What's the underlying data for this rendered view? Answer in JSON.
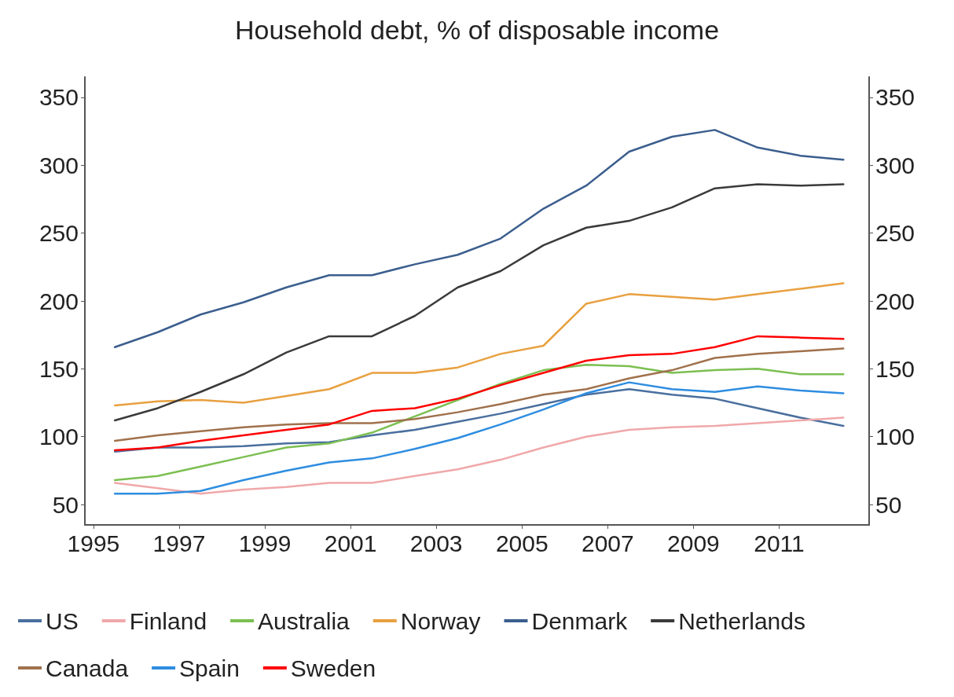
{
  "chart_data": {
    "type": "line",
    "title": "Household debt, % of disposable income",
    "x": [
      1995.5,
      1996.5,
      1997.5,
      1998.5,
      1999.5,
      2000.5,
      2001.5,
      2002.5,
      2003.5,
      2004.5,
      2005.5,
      2006.5,
      2007.5,
      2008.5,
      2009.5,
      2010.5,
      2011.5,
      2012.5
    ],
    "series": [
      {
        "name": "US",
        "color": "#4a6f9e",
        "values": [
          89,
          92,
          92,
          93,
          95,
          96,
          101,
          105,
          111,
          117,
          124,
          131,
          135,
          131,
          128,
          121,
          114,
          108
        ]
      },
      {
        "name": "Finland",
        "color": "#f0a8aa",
        "values": [
          66,
          62,
          58,
          61,
          63,
          66,
          66,
          71,
          76,
          83,
          92,
          100,
          105,
          107,
          108,
          110,
          112,
          114
        ]
      },
      {
        "name": "Australia",
        "color": "#7cbf52",
        "values": [
          68,
          71,
          78,
          85,
          92,
          95,
          103,
          115,
          127,
          139,
          149,
          153,
          152,
          147,
          149,
          150,
          146,
          146
        ]
      },
      {
        "name": "Norway",
        "color": "#e8a040",
        "values": [
          123,
          126,
          127,
          125,
          130,
          135,
          147,
          147,
          151,
          161,
          167,
          198,
          205,
          203,
          201,
          205,
          209,
          213
        ]
      },
      {
        "name": "Denmark",
        "color": "#3b5e8e",
        "values": [
          166,
          177,
          190,
          199,
          210,
          219,
          219,
          227,
          234,
          246,
          268,
          285,
          310,
          321,
          326,
          313,
          307,
          304
        ]
      },
      {
        "name": "Netherlands",
        "color": "#3a3a3a",
        "values": [
          112,
          121,
          133,
          146,
          162,
          174,
          174,
          189,
          210,
          222,
          241,
          254,
          259,
          269,
          283,
          286,
          285,
          286
        ]
      },
      {
        "name": "Canada",
        "color": "#a0714c",
        "values": [
          97,
          101,
          104,
          107,
          109,
          110,
          110,
          113,
          118,
          124,
          131,
          135,
          143,
          149,
          158,
          161,
          163,
          165
        ]
      },
      {
        "name": "Spain",
        "color": "#2e8de0",
        "values": [
          58,
          58,
          60,
          68,
          75,
          81,
          84,
          91,
          99,
          109,
          120,
          132,
          140,
          135,
          133,
          137,
          134,
          132
        ]
      },
      {
        "name": "Sweden",
        "color": "#ff0000",
        "values": [
          90,
          92,
          97,
          101,
          105,
          109,
          119,
          121,
          128,
          138,
          147,
          156,
          160,
          161,
          166,
          174,
          173,
          172
        ]
      }
    ],
    "xlim": [
      1994.8,
      2013.1
    ],
    "xticks": [
      1995,
      1997,
      1999,
      2001,
      2003,
      2005,
      2007,
      2009,
      2011
    ],
    "ylim": [
      35,
      365
    ],
    "yticks": [
      50,
      100,
      150,
      200,
      250,
      300,
      350
    ],
    "y2lim": [
      35,
      365
    ],
    "y2ticks": [
      50,
      100,
      150,
      200,
      250,
      300,
      350
    ],
    "grid": false,
    "legend": "bottom",
    "marker": "none",
    "line_style": "solid"
  }
}
